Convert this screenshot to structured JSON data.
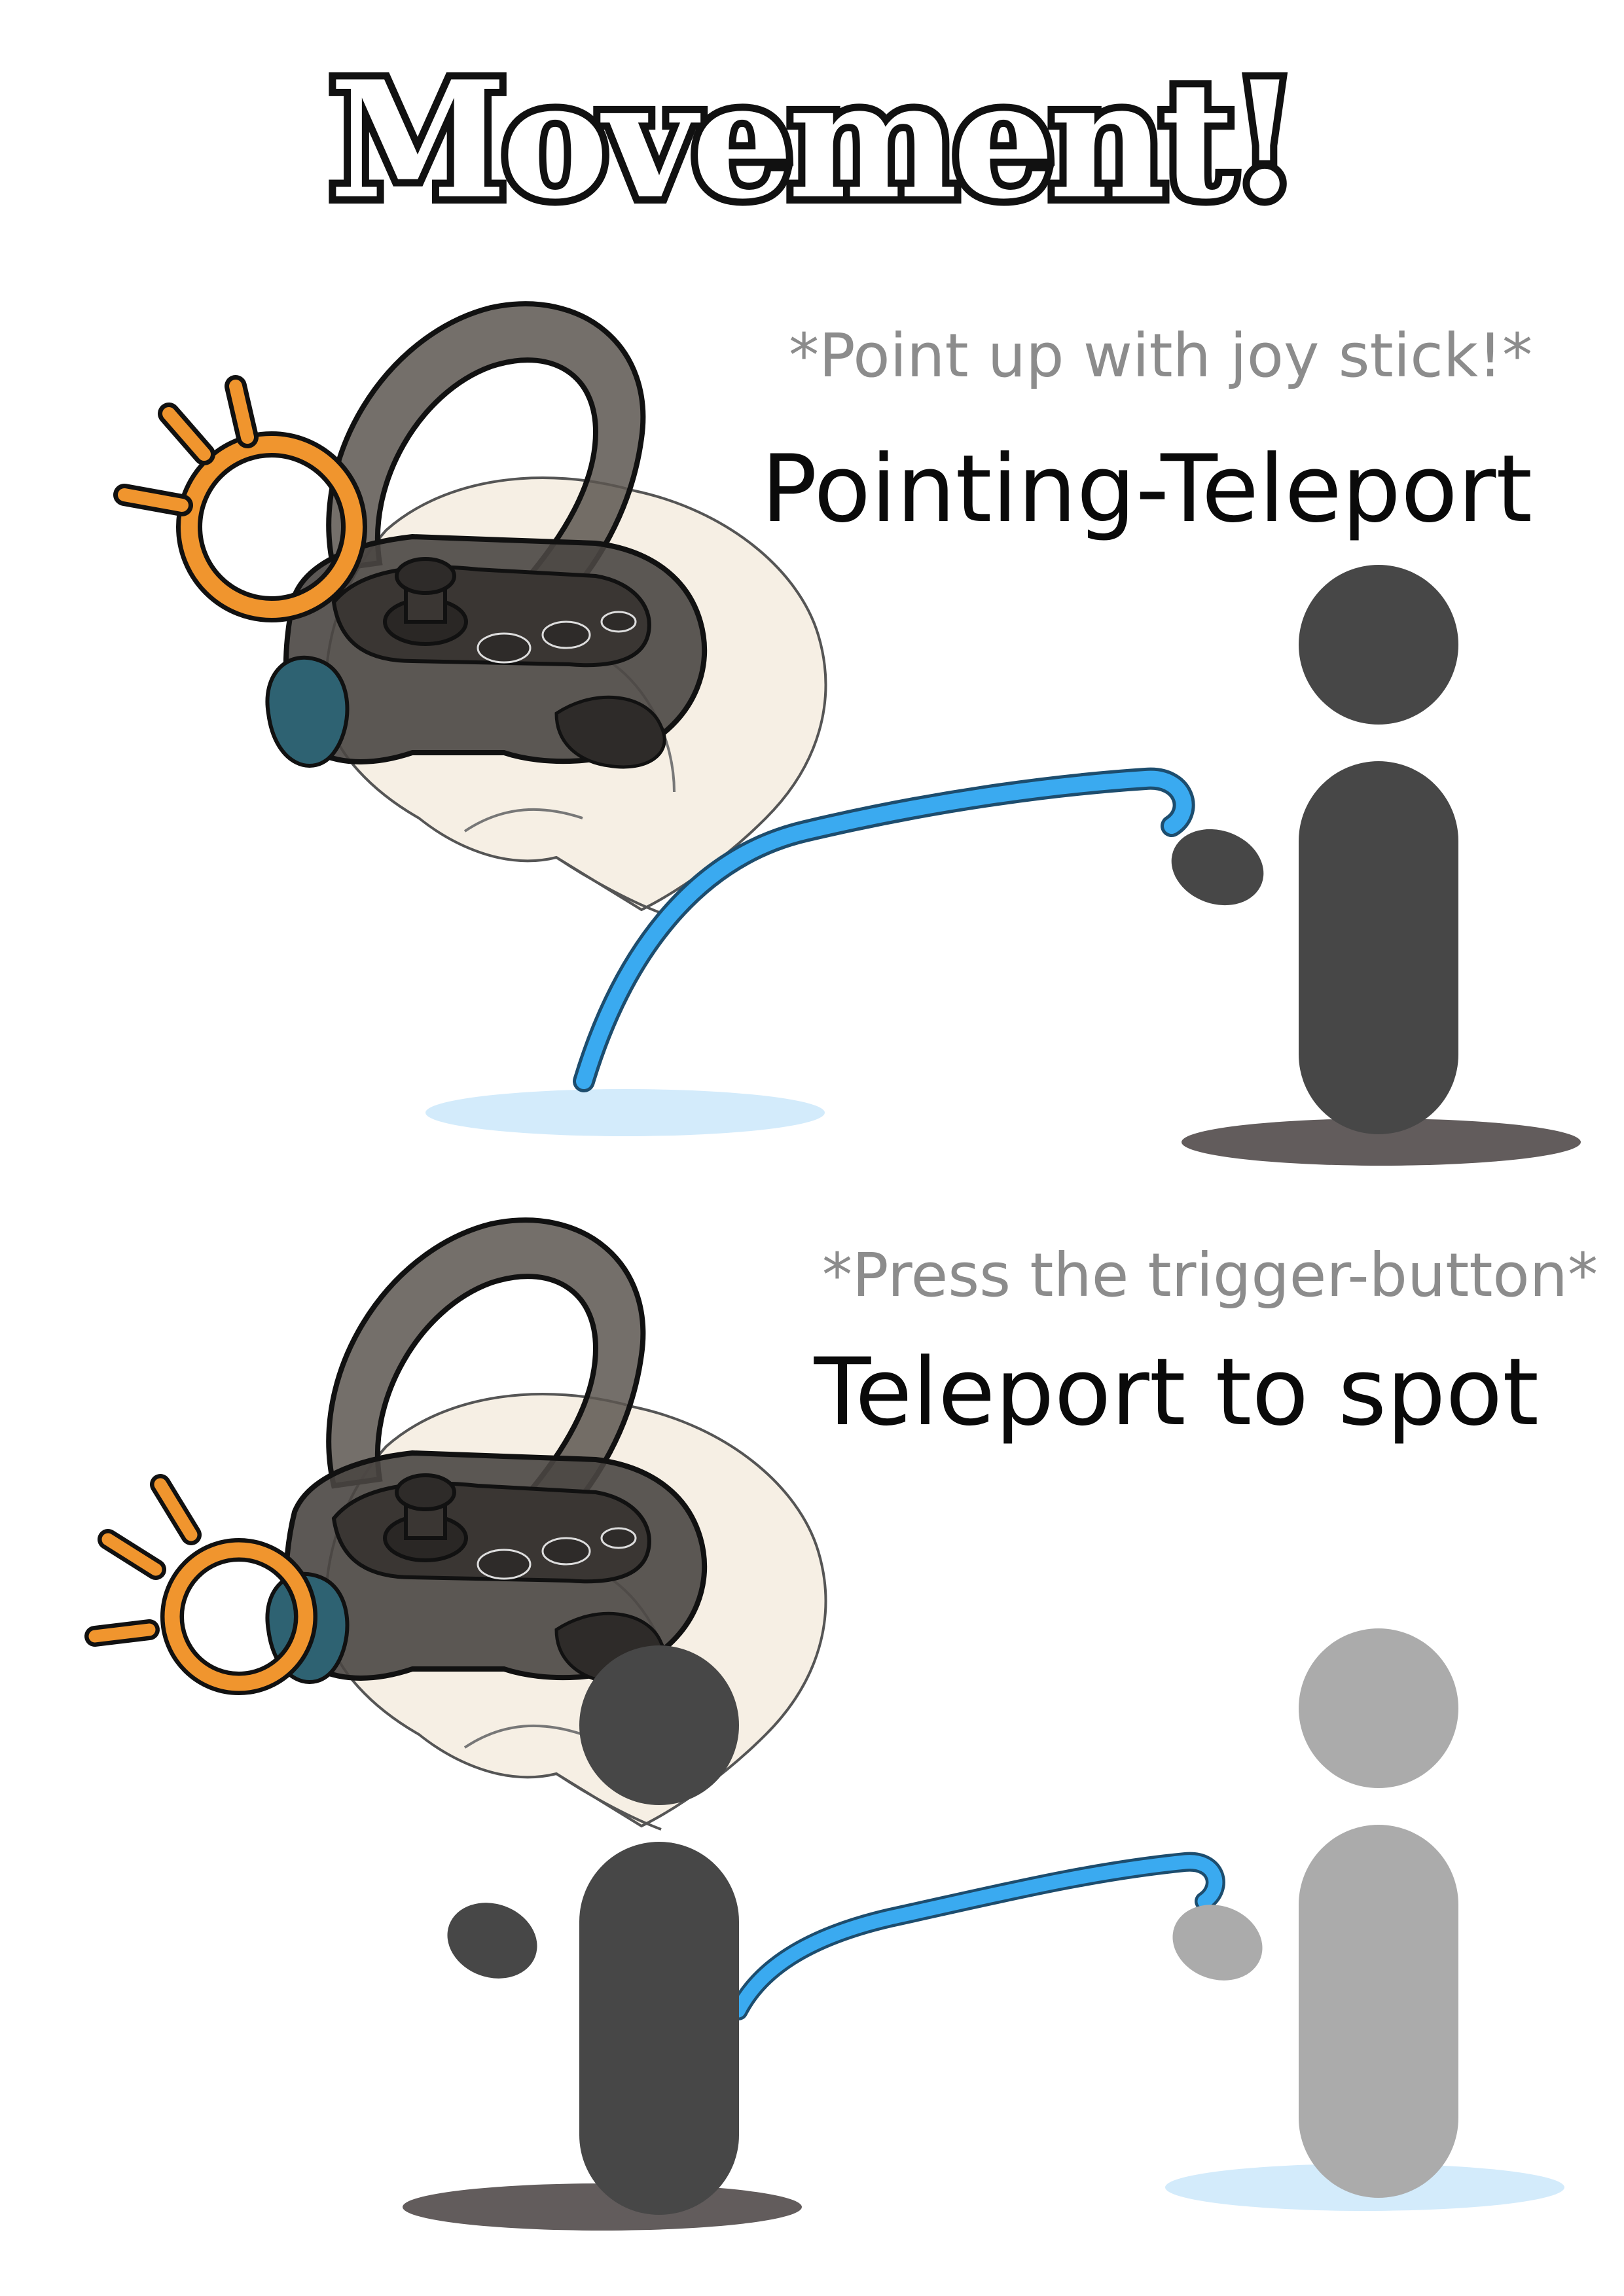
{
  "title": "Movement!",
  "sections": [
    {
      "hint": "*Point up with joy stick!*",
      "heading": "Pointing-Teleport"
    },
    {
      "hint": "*Press the trigger-button*",
      "heading": "Teleport to spot"
    }
  ],
  "colors": {
    "figure": "#474747",
    "ghost_figure": "#ababab",
    "beam": "#3aaaf0",
    "target_spot": "#d3ebfb",
    "shadow": "#625c5c",
    "highlight": "#f0952e",
    "hand": "#f6efe4",
    "controller": "#3e3b38",
    "trigger": "#2e6272"
  },
  "icons": [
    "vr-controller-icon",
    "hand-icon",
    "highlight-ring-icon",
    "person-icon",
    "teleport-beam-icon"
  ]
}
